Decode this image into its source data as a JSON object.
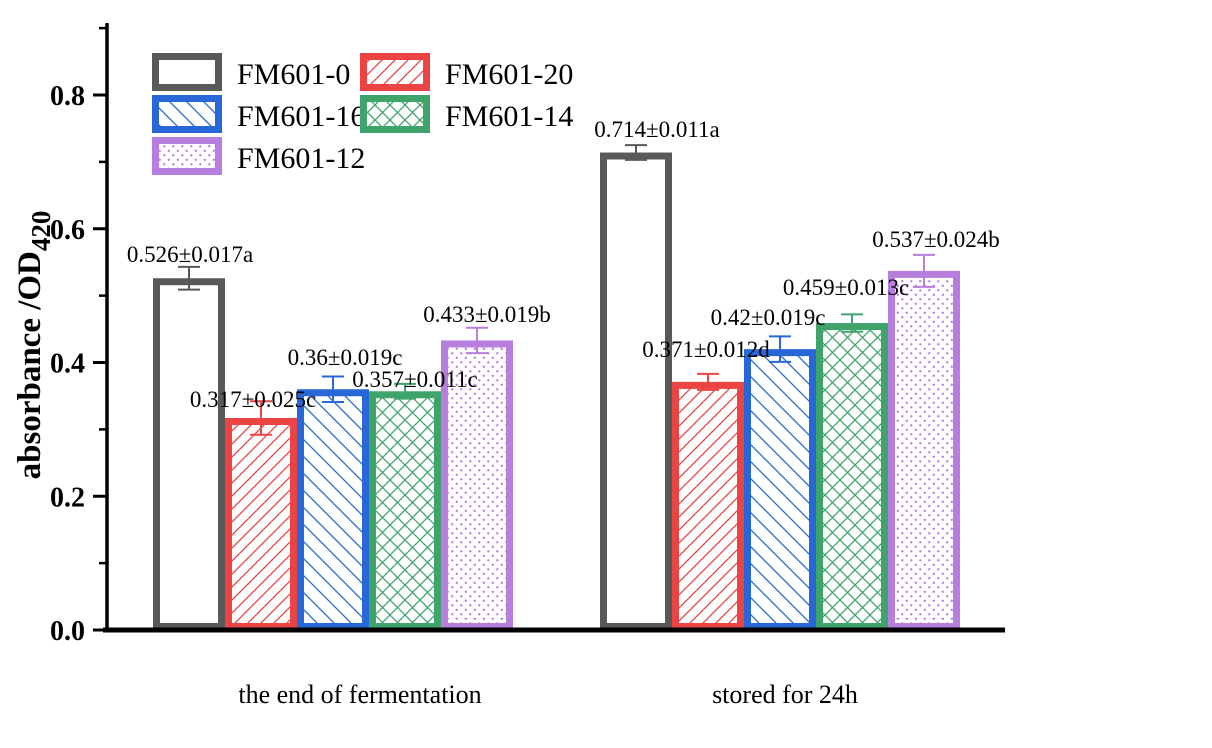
{
  "chart_data": {
    "type": "bar",
    "title": "",
    "ylabel": "absorbance /OD",
    "ylabel_subscript": "420",
    "xlabel": "",
    "categories": [
      "the end of fermentation",
      "stored for 24h"
    ],
    "series": [
      {
        "name": "FM601-0",
        "color": "#595959",
        "hatch": "none",
        "values": [
          0.526,
          0.714
        ],
        "errors": [
          0.017,
          0.011
        ],
        "value_labels": [
          "0.526±0.017a",
          "0.714±0.011a"
        ]
      },
      {
        "name": "FM601-20",
        "color": "#ec4343",
        "hatch": "diag-up",
        "values": [
          0.317,
          0.371
        ],
        "errors": [
          0.025,
          0.012
        ],
        "value_labels": [
          "0.317±0.025c",
          "0.371±0.012d"
        ]
      },
      {
        "name": "FM601-16",
        "color": "#2767d8",
        "hatch": "diag-down",
        "values": [
          0.36,
          0.42
        ],
        "errors": [
          0.019,
          0.019
        ],
        "value_labels": [
          "0.36±0.019c",
          "0.42±0.019c"
        ]
      },
      {
        "name": "FM601-14",
        "color": "#3ea46c",
        "hatch": "cross",
        "values": [
          0.357,
          0.459
        ],
        "errors": [
          0.011,
          0.013
        ],
        "value_labels": [
          "0.357±0.011c",
          "0.459±0.013c"
        ]
      },
      {
        "name": "FM601-12",
        "color": "#b77edd",
        "hatch": "dots",
        "values": [
          0.433,
          0.537
        ],
        "errors": [
          0.019,
          0.024
        ],
        "value_labels": [
          "0.433±0.019b",
          "0.537±0.024b"
        ]
      }
    ],
    "yticks": [
      "0.0",
      "0.2",
      "0.4",
      "0.6",
      "0.8"
    ],
    "ytick_values": [
      0.0,
      0.2,
      0.4,
      0.6,
      0.8
    ],
    "minor_ytick_values": [
      0.1,
      0.3,
      0.5,
      0.7,
      0.9
    ],
    "ylim": [
      0.0,
      0.9
    ],
    "grid": false,
    "legend_position": "top-left-inside",
    "legend_entries": [
      "FM601-0",
      "FM601-20",
      "FM601-16",
      "FM601-14",
      "FM601-12"
    ],
    "bar_fill_background": "#ffffff",
    "axis_color": "#000000",
    "text_color": "#000000"
  }
}
